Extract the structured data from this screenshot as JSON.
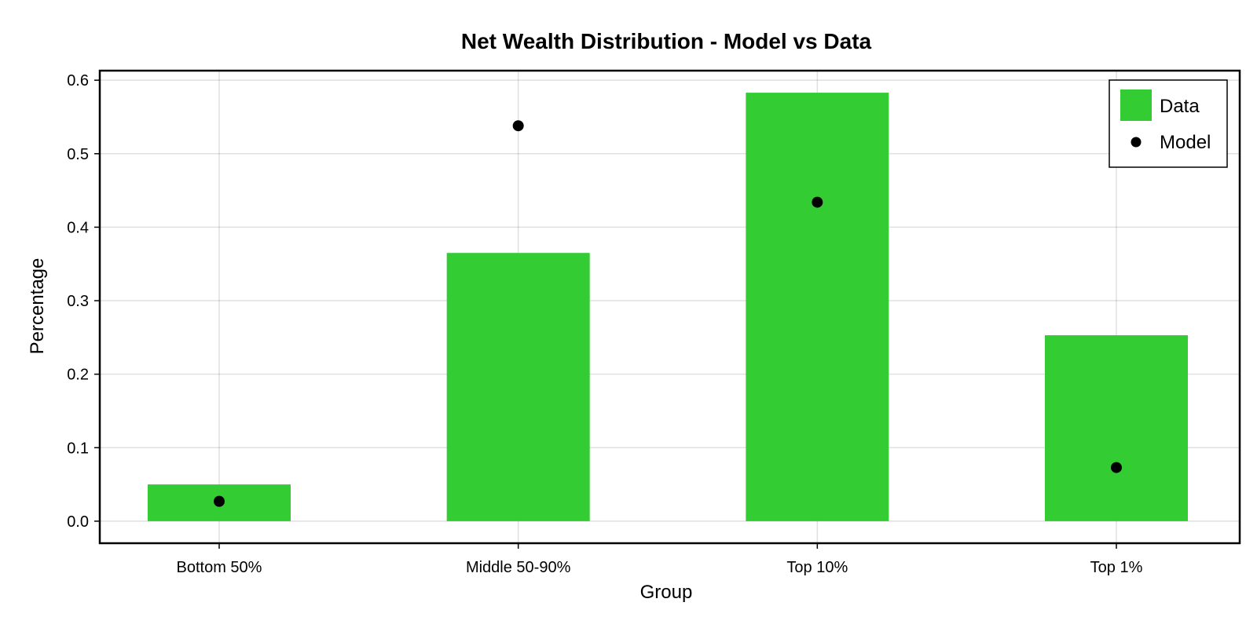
{
  "chart_data": {
    "type": "bar",
    "title": "Net Wealth Distribution - Model vs Data",
    "xlabel": "Group",
    "ylabel": "Percentage",
    "categories": [
      "Bottom 50%",
      "Middle 50-90%",
      "Top 10%",
      "Top 1%"
    ],
    "ylim": [
      -0.03,
      0.613
    ],
    "yticks": [
      0.0,
      0.1,
      0.2,
      0.3,
      0.4,
      0.5,
      0.6
    ],
    "ytick_labels": [
      "0.0",
      "0.1",
      "0.2",
      "0.3",
      "0.4",
      "0.5",
      "0.6"
    ],
    "grid": true,
    "legend_position": "top-right",
    "series": [
      {
        "name": "Data",
        "kind": "bar",
        "color": "#33cc33",
        "values": [
          0.05,
          0.365,
          0.583,
          0.253
        ]
      },
      {
        "name": "Model",
        "kind": "scatter",
        "color": "#000000",
        "values": [
          0.027,
          0.538,
          0.434,
          0.073
        ]
      }
    ]
  }
}
